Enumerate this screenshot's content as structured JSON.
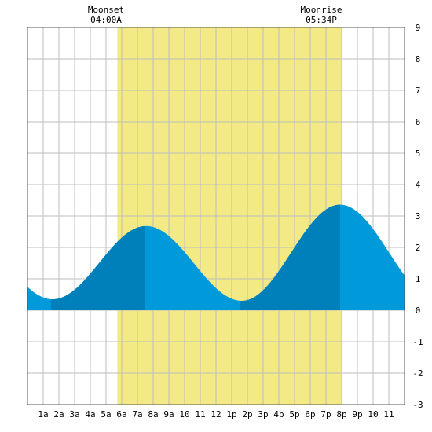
{
  "header": {
    "moonset": {
      "label": "Moonset",
      "time": "04:00A",
      "hour": 4.0
    },
    "moonrise": {
      "label": "Moonrise",
      "time": "05:34P",
      "hour": 17.567
    }
  },
  "colors": {
    "daylight": "#f3ea86",
    "tide_light": "#0099d9",
    "tide_dark": "#0080bb",
    "grid": "#bdbdbd",
    "frame": "#555555"
  },
  "chart_data": {
    "type": "area",
    "title": "",
    "xlabel": "",
    "ylabel": "",
    "xlim": [
      0,
      24
    ],
    "ylim": [
      -3,
      9
    ],
    "grid": true,
    "daylight_hours": [
      5.72,
      20.0
    ],
    "dark_fill_hours": [
      [
        1.5,
        7.5
      ],
      [
        13.5,
        19.9
      ]
    ],
    "x_tick_labels": [
      "1a",
      "2a",
      "3a",
      "4a",
      "5a",
      "6a",
      "7a",
      "8a",
      "9a",
      "10",
      "11",
      "12",
      "1p",
      "2p",
      "3p",
      "4p",
      "5p",
      "6p",
      "7p",
      "8p",
      "9p",
      "10",
      "11"
    ],
    "y_tick_labels": [
      "-3",
      "-2",
      "-1",
      "0",
      "1",
      "2",
      "3",
      "4",
      "5",
      "6",
      "7",
      "8",
      "9"
    ],
    "tide_extremes": [
      {
        "hour": 1.6,
        "height": 0.35
      },
      {
        "hour": 7.55,
        "height": 2.68
      },
      {
        "hour": 13.65,
        "height": 0.3
      },
      {
        "hour": 19.9,
        "height": 3.36
      }
    ],
    "series": [
      {
        "x": [
          0,
          1,
          2,
          3,
          4,
          5,
          6,
          7,
          8,
          9,
          10,
          11,
          12,
          13,
          14,
          15,
          16,
          17,
          18,
          19,
          20,
          21,
          22,
          23,
          24
        ],
        "values": [
          0.72,
          0.4,
          0.4,
          0.6,
          1.0,
          1.6,
          2.2,
          2.6,
          2.65,
          2.35,
          1.85,
          1.25,
          0.7,
          0.35,
          0.35,
          0.7,
          1.35,
          2.15,
          2.9,
          3.3,
          3.35,
          3.1,
          2.65,
          2.0,
          1.25
        ]
      }
    ]
  }
}
